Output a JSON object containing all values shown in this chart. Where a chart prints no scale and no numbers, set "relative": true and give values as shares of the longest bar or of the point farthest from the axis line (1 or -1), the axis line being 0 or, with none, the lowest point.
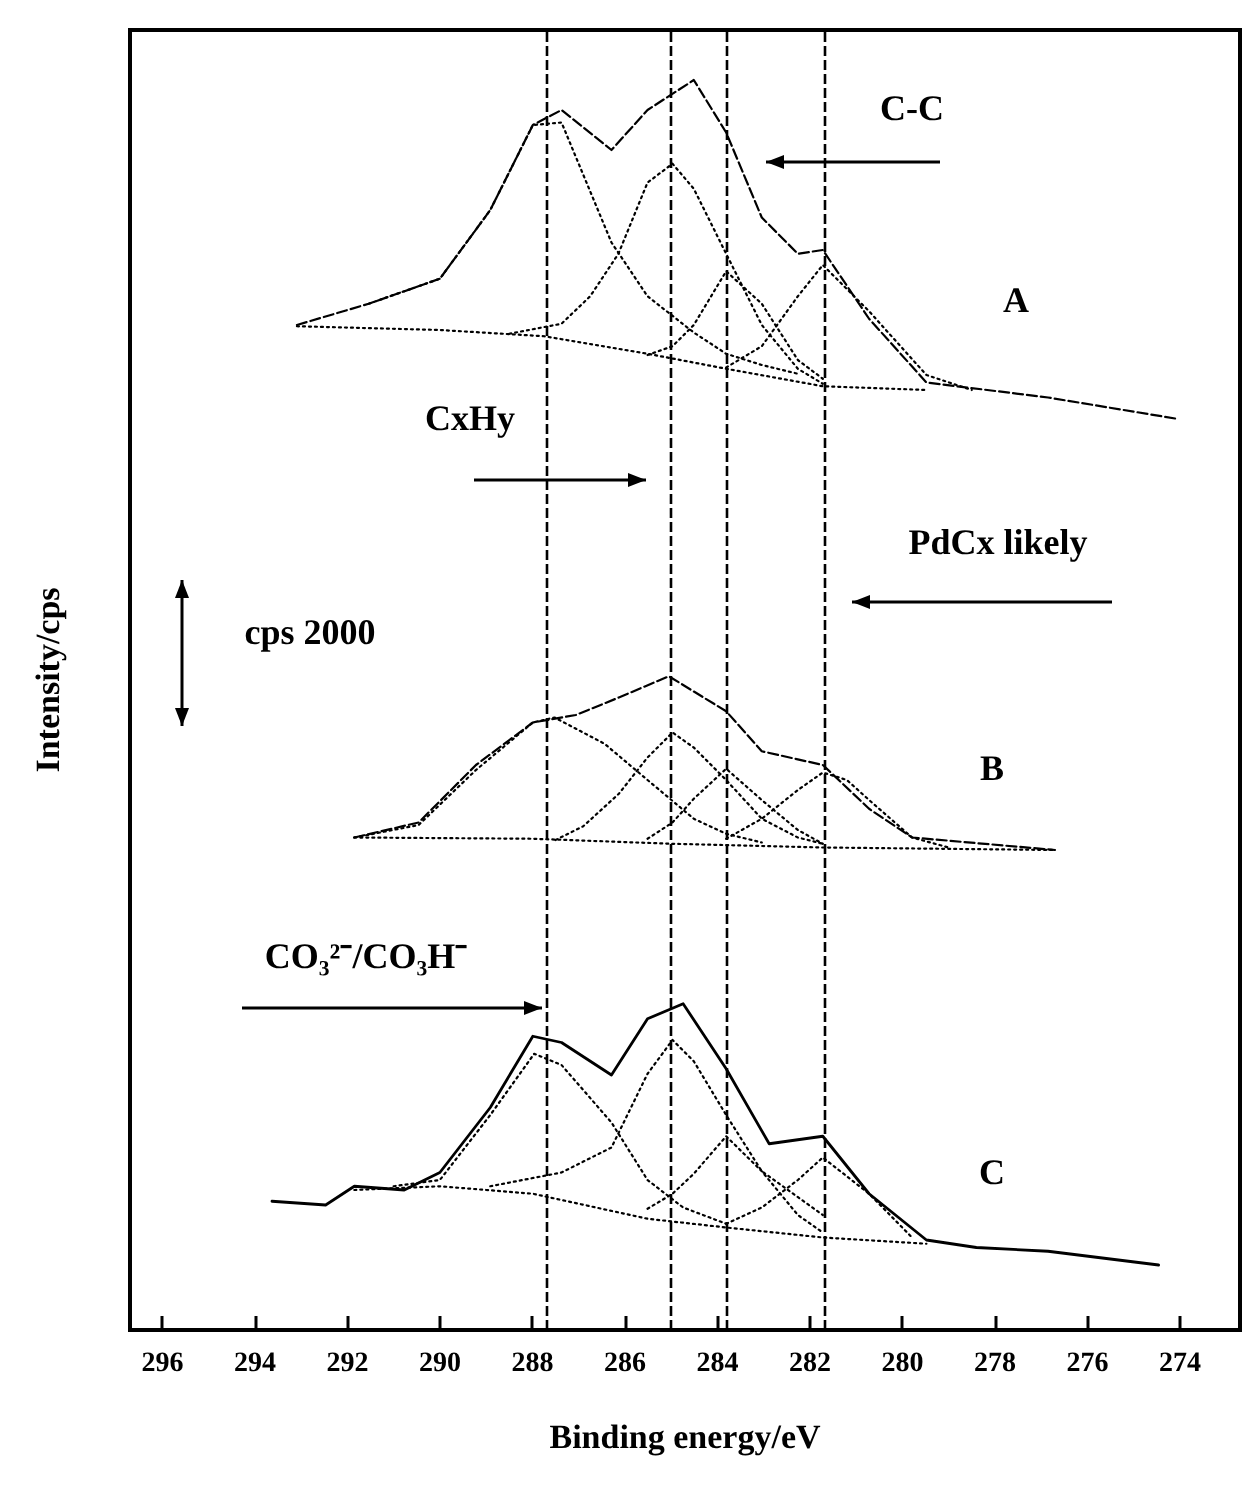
{
  "chart_data": {
    "type": "line",
    "relative": true,
    "xlabel": "Binding energy/eV",
    "ylabel": "Intensity/cps",
    "xlim": [
      296.7,
      272.7
    ],
    "xticks": [
      296,
      294,
      292,
      290,
      288,
      286,
      284,
      282,
      280,
      278,
      276,
      274
    ],
    "tick_labels": "x",
    "grid": false,
    "marker": "none",
    "line_style": "dotted",
    "series": [
      {
        "color": "#000000",
        "line_style": "dashed",
        "x": [
          293.09,
          291.54,
          290.0,
          288.91,
          287.99,
          287.37,
          286.29,
          285.51,
          284.51,
          283.81,
          283.04,
          282.26,
          281.72,
          280.72,
          279.48,
          276.85,
          274.07
        ],
        "values": [
          0.804,
          0.821,
          0.841,
          0.896,
          0.964,
          0.976,
          0.944,
          0.976,
          1.0,
          0.958,
          0.89,
          0.861,
          0.864,
          0.809,
          0.758,
          0.746,
          0.729
        ]
      },
      {
        "color": "#000000",
        "x": [
          293.09,
          290.0,
          287.74,
          285.51,
          283.81,
          281.72,
          279.48
        ],
        "values": [
          0.803,
          0.8,
          0.795,
          0.781,
          0.769,
          0.755,
          0.752
        ]
      },
      {
        "color": "#000000",
        "x": [
          291.54,
          290.0,
          288.91,
          287.99,
          287.37,
          286.29,
          285.51,
          284.51,
          283.81,
          283.04,
          282.26
        ],
        "values": [
          0.821,
          0.841,
          0.896,
          0.964,
          0.966,
          0.87,
          0.827,
          0.798,
          0.781,
          0.772,
          0.765
        ]
      },
      {
        "color": "#000000",
        "x": [
          288.5,
          287.37,
          286.75,
          286.14,
          285.51,
          284.97,
          284.51,
          283.81,
          283.04,
          282.26,
          281.72
        ],
        "values": [
          0.797,
          0.805,
          0.827,
          0.861,
          0.918,
          0.933,
          0.913,
          0.861,
          0.804,
          0.769,
          0.757
        ]
      },
      {
        "color": "#000000",
        "x": [
          285.51,
          284.97,
          284.51,
          283.81,
          283.04,
          282.26,
          281.72
        ],
        "values": [
          0.78,
          0.787,
          0.804,
          0.847,
          0.821,
          0.776,
          0.761
        ]
      },
      {
        "color": "#000000",
        "x": [
          283.81,
          283.04,
          282.26,
          281.72,
          280.72,
          279.48,
          278.5
        ],
        "values": [
          0.77,
          0.787,
          0.827,
          0.852,
          0.815,
          0.764,
          0.752
        ]
      },
      {
        "color": "#000000",
        "line_style": "dashed",
        "x": [
          291.85,
          290.46,
          289.22,
          287.99,
          287.06,
          286.13,
          285.05,
          283.81,
          283.04,
          281.72,
          280.72,
          279.79,
          276.7
        ],
        "values": [
          0.394,
          0.406,
          0.452,
          0.486,
          0.492,
          0.506,
          0.523,
          0.495,
          0.463,
          0.452,
          0.417,
          0.394,
          0.384
        ]
      },
      {
        "color": "#000000",
        "x": [
          291.85,
          288.0,
          285.0,
          281.72,
          276.7
        ],
        "values": [
          0.394,
          0.393,
          0.389,
          0.386,
          0.384
        ]
      },
      {
        "color": "#000000",
        "x": [
          291.85,
          290.46,
          289.22,
          287.99,
          287.52,
          286.44,
          285.51,
          284.51,
          283.81,
          283.04
        ],
        "values": [
          0.394,
          0.404,
          0.448,
          0.486,
          0.49,
          0.469,
          0.44,
          0.409,
          0.397,
          0.39
        ]
      },
      {
        "color": "#000000",
        "x": [
          287.5,
          286.9,
          286.13,
          285.51,
          284.97,
          284.51,
          283.81,
          283.04,
          282.26,
          281.72
        ],
        "values": [
          0.392,
          0.403,
          0.429,
          0.458,
          0.478,
          0.466,
          0.44,
          0.409,
          0.394,
          0.389
        ]
      },
      {
        "color": "#000000",
        "x": [
          285.51,
          284.97,
          284.51,
          283.81,
          283.04,
          282.26,
          281.72
        ],
        "values": [
          0.393,
          0.406,
          0.425,
          0.449,
          0.424,
          0.4,
          0.389
        ]
      },
      {
        "color": "#000000",
        "x": [
          283.81,
          283.04,
          282.26,
          281.72,
          281.2,
          280.72,
          279.79,
          279.0
        ],
        "values": [
          0.393,
          0.409,
          0.432,
          0.446,
          0.44,
          0.424,
          0.394,
          0.386
        ]
      },
      {
        "color": "#000000",
        "line_style": "solid",
        "x": [
          293.63,
          292.47,
          291.85,
          290.77,
          290.0,
          288.91,
          287.99,
          287.37,
          286.29,
          285.51,
          284.74,
          283.81,
          282.88,
          281.72,
          280.72,
          279.48,
          278.4,
          276.85,
          274.46
        ],
        "values": [
          0.103,
          0.1,
          0.115,
          0.112,
          0.126,
          0.178,
          0.235,
          0.23,
          0.204,
          0.249,
          0.261,
          0.209,
          0.149,
          0.155,
          0.109,
          0.072,
          0.066,
          0.063,
          0.052
        ]
      },
      {
        "color": "#000000",
        "x": [
          291.85,
          290.0,
          287.99,
          285.51,
          283.81,
          281.72,
          279.48
        ],
        "values": [
          0.112,
          0.115,
          0.109,
          0.089,
          0.082,
          0.074,
          0.069
        ]
      },
      {
        "color": "#000000",
        "x": [
          291.0,
          290.0,
          288.91,
          287.96,
          287.37,
          286.29,
          285.51,
          284.74,
          283.81
        ],
        "values": [
          0.115,
          0.12,
          0.172,
          0.221,
          0.212,
          0.166,
          0.12,
          0.098,
          0.085
        ]
      },
      {
        "color": "#000000",
        "x": [
          288.91,
          287.37,
          286.29,
          285.51,
          284.97,
          284.51,
          283.81,
          283.04,
          281.72
        ],
        "values": [
          0.115,
          0.126,
          0.146,
          0.205,
          0.232,
          0.215,
          0.172,
          0.127,
          0.092
        ]
      },
      {
        "color": "#000000",
        "x": [
          285.51,
          284.97,
          284.51,
          283.81,
          283.04,
          282.26,
          281.72
        ],
        "values": [
          0.097,
          0.109,
          0.125,
          0.155,
          0.127,
          0.092,
          0.078
        ]
      },
      {
        "color": "#000000",
        "x": [
          283.81,
          283.04,
          282.26,
          281.72,
          280.72,
          279.79
        ],
        "values": [
          0.085,
          0.098,
          0.12,
          0.138,
          0.109,
          0.074
        ]
      }
    ],
    "ref_lines": [
      {
        "axis": "x",
        "value": 287.7,
        "line_style": "dashed",
        "color": "#000000"
      },
      {
        "axis": "x",
        "value": 285.0,
        "line_style": "dashed",
        "color": "#000000"
      },
      {
        "axis": "x",
        "value": 283.8,
        "line_style": "dashed",
        "color": "#000000"
      },
      {
        "axis": "x",
        "value": 281.7,
        "line_style": "dashed",
        "color": "#000000"
      }
    ],
    "annotations": [
      "C-C",
      "A",
      "CxHy",
      "PdCx likely",
      "cps 2000",
      "B",
      "CO₃²⁻/CO₃H⁻",
      "C"
    ]
  }
}
